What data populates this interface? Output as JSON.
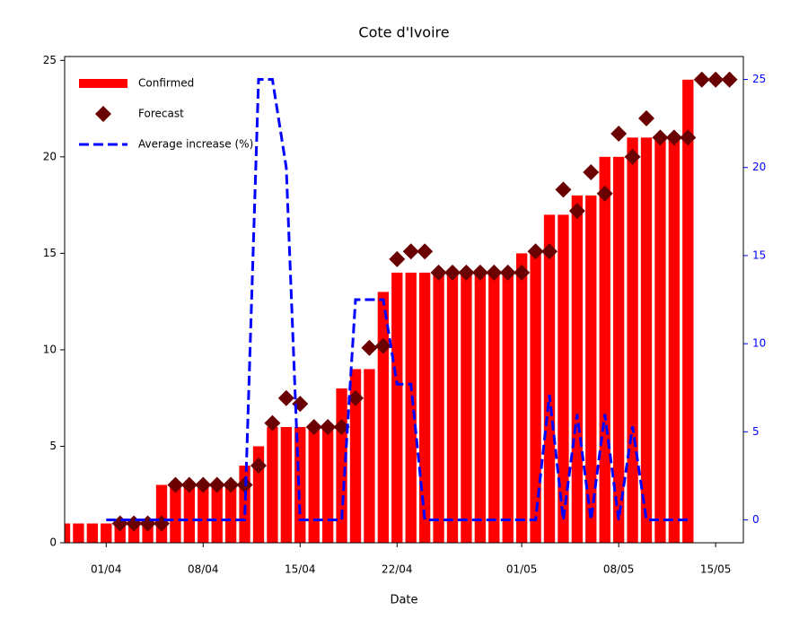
{
  "chart_data": {
    "type": "bar",
    "title": "Cote d'Ivoire",
    "x_label": "Date",
    "categories": [
      "29/03",
      "30/03",
      "31/03",
      "01/04",
      "02/04",
      "03/04",
      "04/04",
      "05/04",
      "06/04",
      "07/04",
      "08/04",
      "09/04",
      "10/04",
      "11/04",
      "12/04",
      "13/04",
      "14/04",
      "15/04",
      "16/04",
      "17/04",
      "18/04",
      "19/04",
      "20/04",
      "21/04",
      "22/04",
      "23/04",
      "24/04",
      "25/04",
      "26/04",
      "27/04",
      "28/04",
      "29/04",
      "30/04",
      "01/05",
      "02/05",
      "03/05",
      "04/05",
      "05/05",
      "06/05",
      "07/05",
      "08/05",
      "09/05",
      "10/05",
      "11/05",
      "12/05",
      "13/05",
      "14/05",
      "15/05",
      "16/05"
    ],
    "xticks": [
      "01/04",
      "08/04",
      "15/04",
      "22/04",
      "01/05",
      "08/05",
      "15/05"
    ],
    "series": [
      {
        "name": "Confirmed",
        "type": "bar",
        "color": "#ff0000",
        "values": [
          1,
          1,
          1,
          1,
          1,
          1,
          1,
          3,
          3,
          3,
          3,
          3,
          3,
          4,
          5,
          6,
          6,
          6,
          6,
          6,
          8,
          9,
          9,
          13,
          14,
          14,
          14,
          14,
          14,
          14,
          14,
          14,
          14,
          15,
          15,
          17,
          17,
          18,
          18,
          20,
          20,
          21,
          21,
          21,
          21,
          24,
          null,
          null,
          null
        ]
      },
      {
        "name": "Forecast",
        "type": "scatter",
        "marker": "diamond",
        "color": "#6b0000",
        "values": [
          null,
          null,
          null,
          null,
          1,
          1,
          1,
          1,
          3,
          3,
          3,
          3,
          3,
          3,
          4,
          6.2,
          7.5,
          7.2,
          6,
          6,
          6,
          7.5,
          10.1,
          10.2,
          14.7,
          15.1,
          15.1,
          14,
          14,
          14,
          14,
          14,
          14,
          14,
          15.1,
          15.1,
          18.3,
          17.2,
          19.2,
          18.1,
          21.2,
          20,
          22,
          21,
          21,
          21,
          24,
          24,
          24
        ]
      },
      {
        "name": "Average increase (%)",
        "type": "line",
        "linestyle": "dashed",
        "axis": "y2",
        "color": "#0000ff",
        "values": [
          null,
          null,
          null,
          0,
          0,
          0,
          0,
          0,
          0,
          0,
          0,
          0,
          0,
          0,
          25,
          25,
          20,
          0,
          0,
          0,
          0,
          12.5,
          12.5,
          12.5,
          7.7,
          7.7,
          0,
          0,
          0,
          0,
          0,
          0,
          0,
          0,
          0,
          7.1,
          0,
          6,
          0,
          6,
          0,
          5.3,
          0,
          0,
          0,
          0,
          null,
          null,
          null
        ]
      }
    ],
    "ylim": [
      0,
      25.2
    ],
    "yticks": [
      0,
      5,
      10,
      15,
      20,
      25
    ],
    "y2lim": [
      -1.3,
      26.3
    ],
    "y2ticks": [
      0,
      5,
      10,
      15,
      20,
      25
    ],
    "y2_color": "#0000ff",
    "legend": "upper left"
  }
}
